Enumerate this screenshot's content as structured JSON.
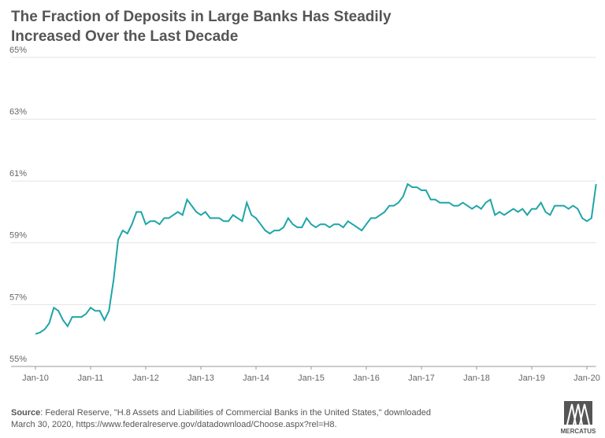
{
  "chart_data": {
    "type": "line",
    "title": "The Fraction of Deposits in Large Banks Has Steadily Increased Over the Last Decade",
    "x": [
      "2010-01",
      "2010-02",
      "2010-03",
      "2010-04",
      "2010-05",
      "2010-06",
      "2010-07",
      "2010-08",
      "2010-09",
      "2010-10",
      "2010-11",
      "2010-12",
      "2011-01",
      "2011-02",
      "2011-03",
      "2011-04",
      "2011-05",
      "2011-06",
      "2011-07",
      "2011-08",
      "2011-09",
      "2011-10",
      "2011-11",
      "2011-12",
      "2012-01",
      "2012-02",
      "2012-03",
      "2012-04",
      "2012-05",
      "2012-06",
      "2012-07",
      "2012-08",
      "2012-09",
      "2012-10",
      "2012-11",
      "2012-12",
      "2013-01",
      "2013-02",
      "2013-03",
      "2013-04",
      "2013-05",
      "2013-06",
      "2013-07",
      "2013-08",
      "2013-09",
      "2013-10",
      "2013-11",
      "2013-12",
      "2014-01",
      "2014-02",
      "2014-03",
      "2014-04",
      "2014-05",
      "2014-06",
      "2014-07",
      "2014-08",
      "2014-09",
      "2014-10",
      "2014-11",
      "2014-12",
      "2015-01",
      "2015-02",
      "2015-03",
      "2015-04",
      "2015-05",
      "2015-06",
      "2015-07",
      "2015-08",
      "2015-09",
      "2015-10",
      "2015-11",
      "2015-12",
      "2016-01",
      "2016-02",
      "2016-03",
      "2016-04",
      "2016-05",
      "2016-06",
      "2016-07",
      "2016-08",
      "2016-09",
      "2016-10",
      "2016-11",
      "2016-12",
      "2017-01",
      "2017-02",
      "2017-03",
      "2017-04",
      "2017-05",
      "2017-06",
      "2017-07",
      "2017-08",
      "2017-09",
      "2017-10",
      "2017-11",
      "2017-12",
      "2018-01",
      "2018-02",
      "2018-03",
      "2018-04",
      "2018-05",
      "2018-06",
      "2018-07",
      "2018-08",
      "2018-09",
      "2018-10",
      "2018-11",
      "2018-12",
      "2019-01",
      "2019-02",
      "2019-03",
      "2019-04",
      "2019-05",
      "2019-06",
      "2019-07",
      "2019-08",
      "2019-09",
      "2019-10",
      "2019-11",
      "2019-12",
      "2020-01",
      "2020-02",
      "2020-03"
    ],
    "series": [
      {
        "color": "#1fa5a8",
        "values": [
          56.05,
          56.1,
          56.2,
          56.4,
          56.9,
          56.8,
          56.5,
          56.3,
          56.6,
          56.6,
          56.6,
          56.7,
          56.9,
          56.8,
          56.8,
          56.5,
          56.8,
          57.8,
          59.1,
          59.4,
          59.3,
          59.6,
          60.0,
          60.0,
          59.6,
          59.7,
          59.7,
          59.6,
          59.8,
          59.8,
          59.9,
          60.0,
          59.9,
          60.4,
          60.2,
          60.0,
          59.9,
          60.0,
          59.8,
          59.8,
          59.8,
          59.7,
          59.7,
          59.9,
          59.8,
          59.7,
          60.3,
          59.9,
          59.8,
          59.6,
          59.4,
          59.3,
          59.4,
          59.4,
          59.5,
          59.8,
          59.6,
          59.5,
          59.5,
          59.8,
          59.6,
          59.5,
          59.6,
          59.6,
          59.5,
          59.6,
          59.6,
          59.5,
          59.7,
          59.6,
          59.5,
          59.4,
          59.6,
          59.8,
          59.8,
          59.9,
          60.0,
          60.2,
          60.2,
          60.3,
          60.5,
          60.9,
          60.8,
          60.8,
          60.7,
          60.7,
          60.4,
          60.4,
          60.3,
          60.3,
          60.3,
          60.2,
          60.2,
          60.3,
          60.2,
          60.1,
          60.2,
          60.1,
          60.3,
          60.4,
          59.9,
          60.0,
          59.9,
          60.0,
          60.1,
          60.0,
          60.1,
          59.9,
          60.1,
          60.1,
          60.3,
          60.0,
          59.9,
          60.2,
          60.2,
          60.2,
          60.1,
          60.2,
          60.1,
          59.8,
          59.7,
          59.8,
          60.9
        ]
      }
    ],
    "xlim": [
      "2010-01",
      "2020-03"
    ],
    "xticks": [
      {
        "value": "2010-01",
        "label": "Jan-10"
      },
      {
        "value": "2011-01",
        "label": "Jan-11"
      },
      {
        "value": "2012-01",
        "label": "Jan-12"
      },
      {
        "value": "2013-01",
        "label": "Jan-13"
      },
      {
        "value": "2014-01",
        "label": "Jan-14"
      },
      {
        "value": "2015-01",
        "label": "Jan-15"
      },
      {
        "value": "2016-01",
        "label": "Jan-16"
      },
      {
        "value": "2017-01",
        "label": "Jan-17"
      },
      {
        "value": "2018-01",
        "label": "Jan-18"
      },
      {
        "value": "2019-01",
        "label": "Jan-19"
      },
      {
        "value": "2020-01",
        "label": "Jan-20"
      }
    ],
    "ylim": [
      55,
      65
    ],
    "yticks": [
      {
        "value": 55,
        "label": "55%"
      },
      {
        "value": 57,
        "label": "57%"
      },
      {
        "value": 59,
        "label": "59%"
      },
      {
        "value": 61,
        "label": "61%"
      },
      {
        "value": 63,
        "label": "63%"
      },
      {
        "value": 65,
        "label": "65%"
      }
    ],
    "grid": true,
    "source": {
      "label": "Source",
      "text": ": Federal Reserve, \"H.8 Assets and Liabilities of Commercial Banks in the United States,\" downloaded",
      "text2": "March 30, 2020, https://www.federalreserve.gov/datadownload/Choose.aspx?rel=H8."
    },
    "logo": "MERCATUS"
  }
}
